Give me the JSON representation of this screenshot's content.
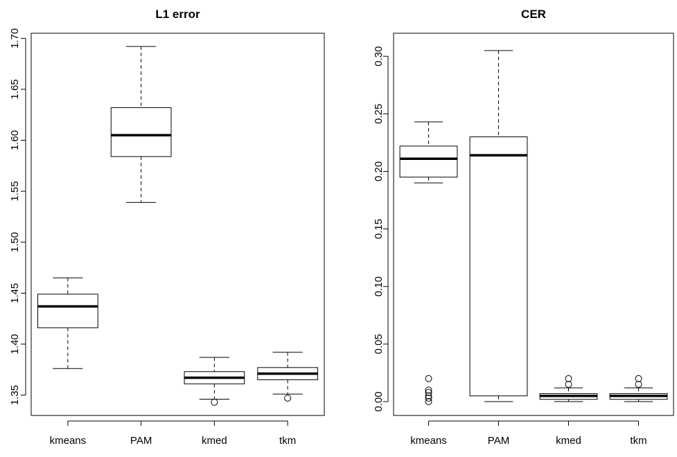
{
  "chart_data": [
    {
      "type": "box",
      "title": "L1 error",
      "categories": [
        "kmeans",
        "PAM",
        "kmed",
        "tkm"
      ],
      "ylim": [
        1.33,
        1.705
      ],
      "yticks": [
        1.35,
        1.4,
        1.45,
        1.5,
        1.55,
        1.6,
        1.65,
        1.7
      ],
      "ytick_labels": [
        "1.35",
        "1.40",
        "1.45",
        "1.50",
        "1.55",
        "1.60",
        "1.65",
        "1.70"
      ],
      "boxes": [
        {
          "name": "kmeans",
          "whisker_low": 1.376,
          "q1": 1.416,
          "median": 1.437,
          "q3": 1.449,
          "whisker_high": 1.465,
          "outliers": []
        },
        {
          "name": "PAM",
          "whisker_low": 1.539,
          "q1": 1.584,
          "median": 1.605,
          "q3": 1.632,
          "whisker_high": 1.692,
          "outliers": []
        },
        {
          "name": "kmed",
          "whisker_low": 1.346,
          "q1": 1.361,
          "median": 1.367,
          "q3": 1.373,
          "whisker_high": 1.387,
          "outliers": [
            1.343
          ]
        },
        {
          "name": "tkm",
          "whisker_low": 1.351,
          "q1": 1.365,
          "median": 1.371,
          "q3": 1.377,
          "whisker_high": 1.392,
          "outliers": [
            1.347
          ]
        }
      ]
    },
    {
      "type": "box",
      "title": "CER",
      "categories": [
        "kmeans",
        "PAM",
        "kmed",
        "tkm"
      ],
      "ylim": [
        -0.012,
        0.32
      ],
      "yticks": [
        0.0,
        0.05,
        0.1,
        0.15,
        0.2,
        0.25,
        0.3
      ],
      "ytick_labels": [
        "0.00",
        "0.05",
        "0.10",
        "0.15",
        "0.20",
        "0.25",
        "0.30"
      ],
      "boxes": [
        {
          "name": "kmeans",
          "whisker_low": 0.19,
          "q1": 0.195,
          "median": 0.211,
          "q3": 0.222,
          "whisker_high": 0.243,
          "outliers": [
            0.0,
            0.003,
            0.005,
            0.008,
            0.01,
            0.02
          ]
        },
        {
          "name": "PAM",
          "whisker_low": 0.0,
          "q1": 0.005,
          "median": 0.214,
          "q3": 0.23,
          "whisker_high": 0.305,
          "outliers": []
        },
        {
          "name": "kmed",
          "whisker_low": 0.0,
          "q1": 0.002,
          "median": 0.005,
          "q3": 0.007,
          "whisker_high": 0.012,
          "outliers": [
            0.015,
            0.02
          ]
        },
        {
          "name": "tkm",
          "whisker_low": 0.0,
          "q1": 0.002,
          "median": 0.005,
          "q3": 0.007,
          "whisker_high": 0.012,
          "outliers": [
            0.015,
            0.02
          ]
        }
      ]
    }
  ]
}
